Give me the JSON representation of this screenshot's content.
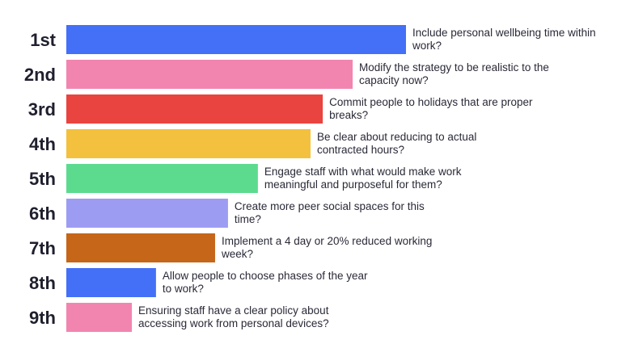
{
  "chart_data": {
    "type": "bar",
    "orientation": "horizontal",
    "grid": false,
    "title": "",
    "xlabel": "",
    "ylabel": "",
    "xlim": [
      0,
      100
    ],
    "bars": [
      {
        "rank": "1st",
        "value": 100,
        "color": "#4470f7",
        "label_lines": [
          "Include personal wellbeing time within",
          "work?"
        ]
      },
      {
        "rank": "2nd",
        "value": 84.3,
        "color": "#f285b0",
        "label_lines": [
          "Modify the strategy to be realistic to the",
          "capacity now?"
        ]
      },
      {
        "rank": "3rd",
        "value": 75.5,
        "color": "#ea4440",
        "label_lines": [
          "Commit people to holidays that are proper",
          "breaks?"
        ]
      },
      {
        "rank": "4th",
        "value": 71.9,
        "color": "#f3c13d",
        "label_lines": [
          "Be clear about reducing to actual",
          "contracted hours?"
        ]
      },
      {
        "rank": "5th",
        "value": 56.4,
        "color": "#5cdb8e",
        "label_lines": [
          "Engage staff with what would make work",
          "meaningful and purposeful for them?"
        ]
      },
      {
        "rank": "6th",
        "value": 47.6,
        "color": "#9d9cf3",
        "label_lines": [
          "Create more peer social spaces for this",
          "time?"
        ]
      },
      {
        "rank": "7th",
        "value": 43.8,
        "color": "#c56619",
        "label_lines": [
          "Implement a 4 day or 20% reduced working",
          "week?"
        ]
      },
      {
        "rank": "8th",
        "value": 26.4,
        "color": "#4470f7",
        "label_lines": [
          "Allow people to choose phases of the year",
          "to work?"
        ]
      },
      {
        "rank": "9th",
        "value": 19.3,
        "color": "#f285b0",
        "label_lines": [
          "Ensuring staff have a clear policy about",
          "accessing work from personal devices?"
        ]
      }
    ]
  }
}
